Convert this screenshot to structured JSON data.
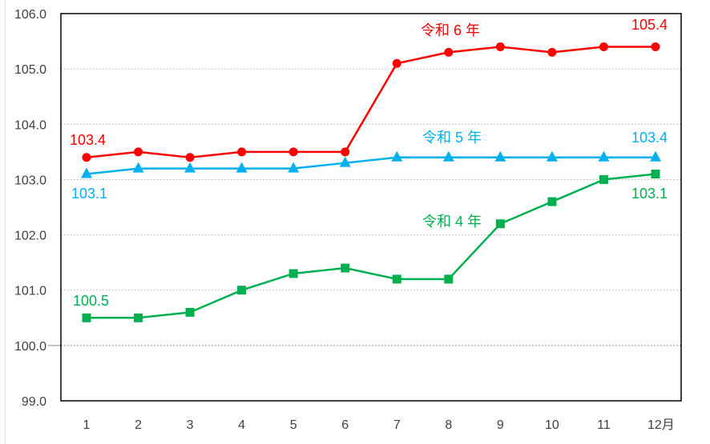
{
  "chart_data": {
    "type": "line",
    "title": "",
    "xlabel": "",
    "ylabel": "",
    "x": [
      "1",
      "2",
      "3",
      "4",
      "5",
      "6",
      "7",
      "8",
      "9",
      "10",
      "11",
      "12月"
    ],
    "ylim": [
      99.0,
      106.0
    ],
    "yticks": [
      "99.0",
      "100.0",
      "101.0",
      "102.0",
      "103.0",
      "104.0",
      "105.0",
      "106.0"
    ],
    "grid": "horizontal dotted",
    "legend": "inline labels",
    "series": [
      {
        "name": "令和６年",
        "color": "#ff0000",
        "marker": "circle",
        "values": [
          103.4,
          103.5,
          103.4,
          103.5,
          103.5,
          103.5,
          105.1,
          105.3,
          105.4,
          105.3,
          105.4,
          105.4
        ],
        "start_label": "103.4",
        "end_label": "105.4"
      },
      {
        "name": "令和５年",
        "color": "#00b0f0",
        "marker": "triangle",
        "values": [
          103.1,
          103.2,
          103.2,
          103.2,
          103.2,
          103.3,
          103.4,
          103.4,
          103.4,
          103.4,
          103.4,
          103.4
        ],
        "start_label": "103.1",
        "end_label": "103.4"
      },
      {
        "name": "令和４年",
        "color": "#00b050",
        "marker": "square",
        "values": [
          100.5,
          100.5,
          100.6,
          101.0,
          101.3,
          101.4,
          101.2,
          101.2,
          102.2,
          102.6,
          103.0,
          103.1
        ],
        "start_label": "100.5",
        "end_label": "103.1"
      }
    ]
  },
  "labels": {
    "r6": "令和 6 年",
    "r5": "令和 5 年",
    "r4": "令和 4 年"
  }
}
